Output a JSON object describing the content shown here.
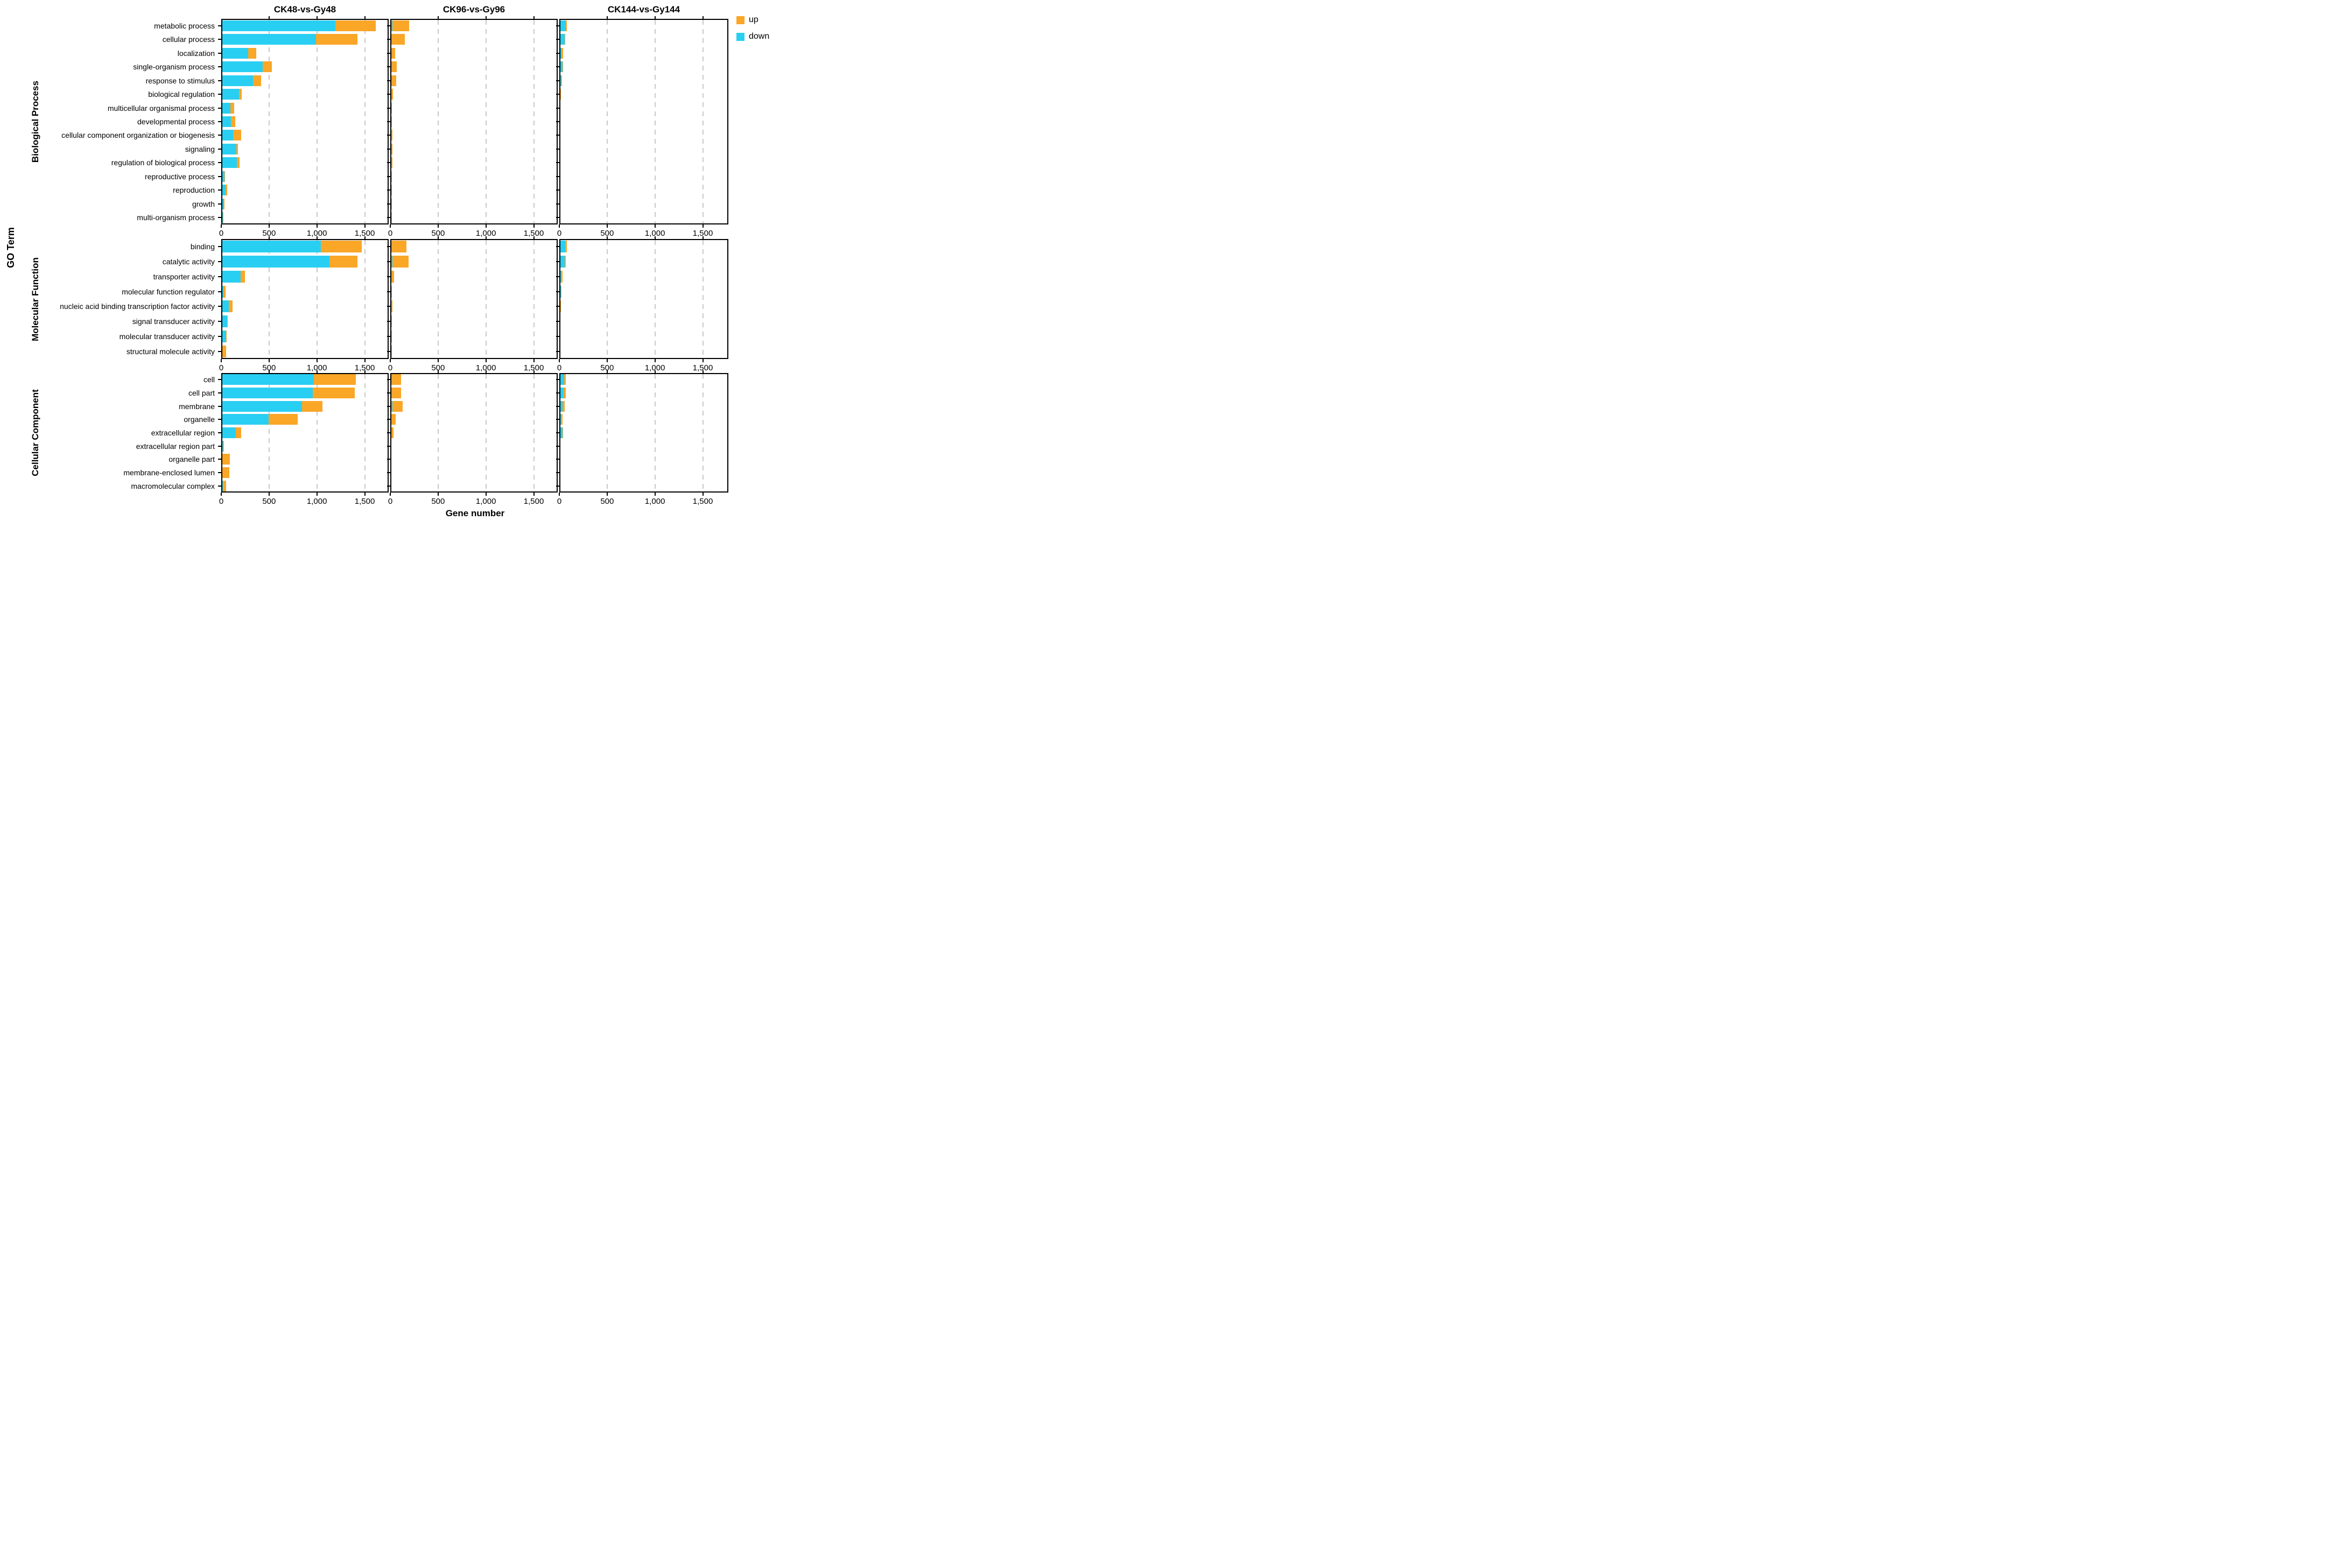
{
  "figure": {
    "panel_titles": [
      "CK48-vs-Gy48",
      "CK96-vs-Gy96",
      "CK144-vs-Gy144"
    ],
    "x_axis_title": "Gene number",
    "y_axis_title": "GO Term",
    "x_tick_labels": [
      "0",
      "500",
      "1,000",
      "1,500"
    ]
  },
  "legend": {
    "items": [
      {
        "label": "up",
        "color": "#FAA627"
      },
      {
        "label": "down",
        "color": "#29CFF2"
      }
    ]
  },
  "chart_data": {
    "type": "bar",
    "orientation": "horizontal_stacked",
    "title": "",
    "xlabel": "Gene number",
    "ylabel": "GO Term",
    "xlim": [
      0,
      1750
    ],
    "x_tick_values": [
      0,
      500,
      1000,
      1500
    ],
    "grid": "vertical-dashed",
    "legend_position": "top-right",
    "colors": {
      "up": "#FAA627",
      "down": "#29CFF2"
    },
    "panels": [
      "CK48-vs-Gy48",
      "CK96-vs-Gy96",
      "CK144-vs-Gy144"
    ],
    "blocks": [
      {
        "name": "Biological Process",
        "categories": [
          "metabolic process",
          "cellular process",
          "localization",
          "single-organism process",
          "response to stimulus",
          "biological regulation",
          "multicellular organismal process",
          "developmental process",
          "cellular component organization or biogenesis",
          "signaling",
          "regulation of biological process",
          "reproductive process",
          "reproduction",
          "growth",
          "multi-organism process"
        ],
        "series": [
          {
            "panel": "CK48-vs-Gy48",
            "down": [
              1180,
              980,
              270,
              420,
              320,
              175,
              82,
              90,
              112,
              148,
              150,
              20,
              35,
              15,
              8
            ],
            "up": [
              425,
              430,
              85,
              95,
              85,
              30,
              42,
              45,
              85,
              18,
              28,
              5,
              15,
              4,
              1
            ]
          },
          {
            "panel": "CK96-vs-Gy96",
            "down": [
              12,
              8,
              3,
              4,
              8,
              2,
              1,
              1,
              2,
              1,
              1,
              0,
              0,
              0,
              0
            ],
            "up": [
              175,
              130,
              35,
              52,
              45,
              15,
              2,
              4,
              12,
              8,
              8,
              2,
              2,
              1,
              1
            ]
          },
          {
            "panel": "CK144-vs-Gy144",
            "down": [
              55,
              46,
              12,
              21,
              4,
              0,
              0,
              0,
              0,
              0,
              0,
              0,
              0,
              0,
              0
            ],
            "up": [
              13,
              6,
              14,
              2,
              12,
              4,
              0,
              0,
              0,
              0,
              0,
              0,
              0,
              0,
              0
            ]
          }
        ]
      },
      {
        "name": "Molecular Function",
        "categories": [
          "binding",
          "catalytic activity",
          "transporter activity",
          "molecular function regulator",
          "nucleic acid binding transcription factor activity",
          "signal transducer activity",
          "molecular transducer activity",
          "structural molecule activity"
        ],
        "series": [
          {
            "panel": "CK48-vs-Gy48",
            "down": [
              1030,
              1120,
              190,
              11,
              70,
              50,
              40,
              0
            ],
            "up": [
              430,
              295,
              46,
              22,
              38,
              6,
              3,
              42
            ]
          },
          {
            "panel": "CK96-vs-Gy96",
            "down": [
              7,
              14,
              2,
              0,
              1,
              0,
              0,
              0
            ],
            "up": [
              153,
              167,
              26,
              3,
              8,
              1,
              1,
              1
            ]
          },
          {
            "panel": "CK144-vs-Gy144",
            "down": [
              50,
              47,
              5,
              5,
              0,
              0,
              0,
              0
            ],
            "up": [
              18,
              10,
              15,
              1,
              1,
              0,
              0,
              0
            ]
          }
        ]
      },
      {
        "name": "Cellular Component",
        "categories": [
          "cell",
          "cell part",
          "membrane",
          "organelle",
          "extracellular region",
          "extracellular region part",
          "organelle part",
          "membrane-enclosed lumen",
          "macromolecular complex"
        ],
        "series": [
          {
            "panel": "CK48-vs-Gy48",
            "down": [
              955,
              945,
              835,
              486,
              140,
              3,
              0,
              0,
              5
            ],
            "up": [
              440,
              440,
              210,
              300,
              56,
              16,
              80,
              74,
              36
            ]
          },
          {
            "panel": "CK96-vs-Gy96",
            "down": [
              3,
              3,
              9,
              2,
              1,
              0,
              0,
              0,
              0
            ],
            "up": [
              97,
              97,
              112,
              45,
              19,
              0,
              0,
              0,
              0
            ]
          },
          {
            "panel": "CK144-vs-Gy144",
            "down": [
              37,
              36,
              21,
              6,
              22,
              0,
              0,
              0,
              0
            ],
            "up": [
              20,
              22,
              25,
              17,
              3,
              0,
              0,
              0,
              0
            ]
          }
        ]
      }
    ]
  }
}
